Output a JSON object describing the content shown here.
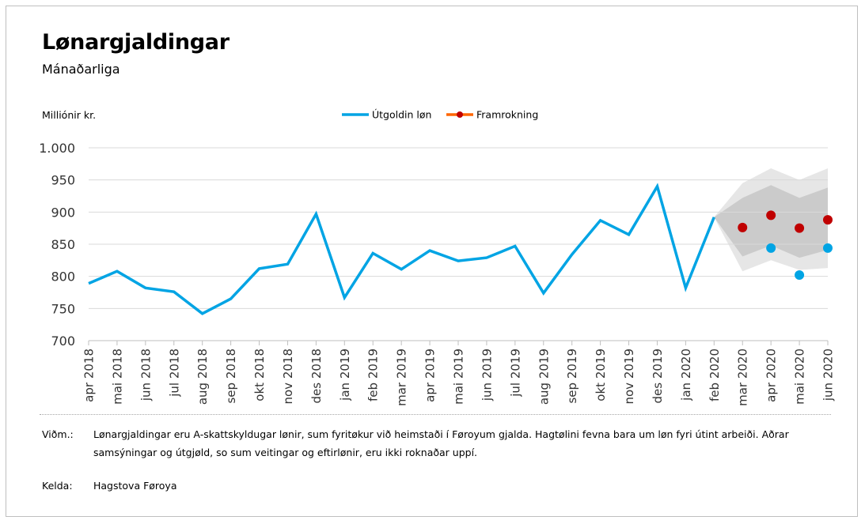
{
  "chart_data": {
    "type": "line",
    "title": "Lønargjaldingar",
    "subtitle": "Mánaðarliga",
    "ylabel": "Milliónir kr.",
    "ylim": [
      700,
      1000
    ],
    "yticks": [
      700,
      750,
      800,
      850,
      900,
      950,
      1000
    ],
    "ytick_labels": [
      "700",
      "750",
      "800",
      "850",
      "900",
      "950",
      "1.000"
    ],
    "grid": true,
    "legend_position": "top-center",
    "categories": [
      "apr 2018",
      "mai 2018",
      "jun 2018",
      "jul 2018",
      "aug 2018",
      "sep 2018",
      "okt 2018",
      "nov 2018",
      "des 2018",
      "jan 2019",
      "feb 2019",
      "mar 2019",
      "apr 2019",
      "mai 2019",
      "jun 2019",
      "jul 2019",
      "aug 2019",
      "sep 2019",
      "okt 2019",
      "nov 2019",
      "des 2019",
      "jan 2020",
      "feb 2020",
      "mar 2020",
      "apr 2020",
      "mai 2020",
      "jun 2020"
    ],
    "series": [
      {
        "name": "Útgoldin løn",
        "color": "#00a4e4",
        "line_values": [
          789,
          808,
          782,
          776,
          742,
          765,
          812,
          819,
          897,
          767,
          836,
          811,
          840,
          824,
          829,
          847,
          774,
          834,
          887,
          865,
          940,
          782,
          892,
          null,
          null,
          null,
          null
        ],
        "extra_points": [
          {
            "category": "apr 2020",
            "value": 844
          },
          {
            "category": "mai 2020",
            "value": 802
          },
          {
            "category": "jun 2020",
            "value": 844
          }
        ]
      },
      {
        "name": "Framrokning",
        "color": "#c00000",
        "line_color": "#ff6600",
        "points": [
          {
            "category": "mar 2020",
            "value": 876
          },
          {
            "category": "apr 2020",
            "value": 895
          },
          {
            "category": "mai 2020",
            "value": 875
          },
          {
            "category": "jun 2020",
            "value": 888
          }
        ]
      }
    ],
    "bands": [
      {
        "level": "outer",
        "color": "#e6e6e6",
        "categories": [
          "feb 2020",
          "mar 2020",
          "apr 2020",
          "mai 2020",
          "jun 2020"
        ],
        "upper": [
          892,
          945,
          968,
          950,
          968
        ],
        "lower": [
          892,
          808,
          825,
          810,
          813
        ]
      },
      {
        "level": "inner",
        "color": "#cbcbcb",
        "categories": [
          "feb 2020",
          "mar 2020",
          "apr 2020",
          "mai 2020",
          "jun 2020"
        ],
        "upper": [
          892,
          922,
          942,
          922,
          938
        ],
        "lower": [
          892,
          831,
          848,
          829,
          841
        ]
      }
    ]
  },
  "footer": {
    "note_label": "Viðm.:",
    "note_line1": "Lønargjaldingar eru A-skattskyldugar lønir, sum fyritøkur við heimstaði í Føroyum gjalda. Hagtølini fevna bara um løn fyri útint arbeiði. Aðrar",
    "note_line2": "samsýningar og útgjøld, so sum veitingar og eftirlønir, eru ikki roknaðar uppí.",
    "source_label": "Kelda:",
    "source_text": "Hagstova Føroya"
  }
}
